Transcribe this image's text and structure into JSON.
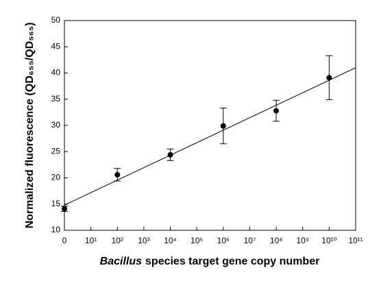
{
  "chart_data": {
    "type": "scatter",
    "x_label_italic": "Bacillus",
    "x_label": "species target gene copy number",
    "y_label": "Normalized fluorescence (QD₆₅₅/QD₅₆₅)",
    "xlim": [
      0,
      11
    ],
    "xticks": [
      0,
      {
        "value": 1,
        "label": "10¹"
      },
      {
        "value": 2,
        "label": "10²"
      },
      {
        "value": 3,
        "label": "10³"
      },
      {
        "value": 4,
        "label": "10⁴"
      },
      {
        "value": 5,
        "label": "10⁵"
      },
      {
        "value": 6,
        "label": "10⁶"
      },
      {
        "value": 7,
        "label": "10⁷"
      },
      {
        "value": 8,
        "label": "10⁸"
      },
      {
        "value": 9,
        "label": "10⁹"
      },
      {
        "value": 10,
        "label": "10¹⁰"
      },
      {
        "value": 11,
        "label": "10¹¹"
      }
    ],
    "ylim": [
      10,
      50
    ],
    "yticks": [
      10,
      15,
      20,
      25,
      30,
      35,
      40,
      45,
      50
    ],
    "series": [
      {
        "color": "#000000",
        "x": [
          0,
          2,
          4,
          6,
          8,
          10
        ],
        "values": [
          14.1,
          20.6,
          24.4,
          29.9,
          32.8,
          39.1
        ],
        "errors": [
          0.5,
          1.2,
          1.1,
          3.4,
          2.0,
          4.2
        ]
      }
    ],
    "fit": {
      "x": [
        0,
        11
      ],
      "y": [
        14.8,
        41.0
      ],
      "color": "#000000"
    }
  }
}
